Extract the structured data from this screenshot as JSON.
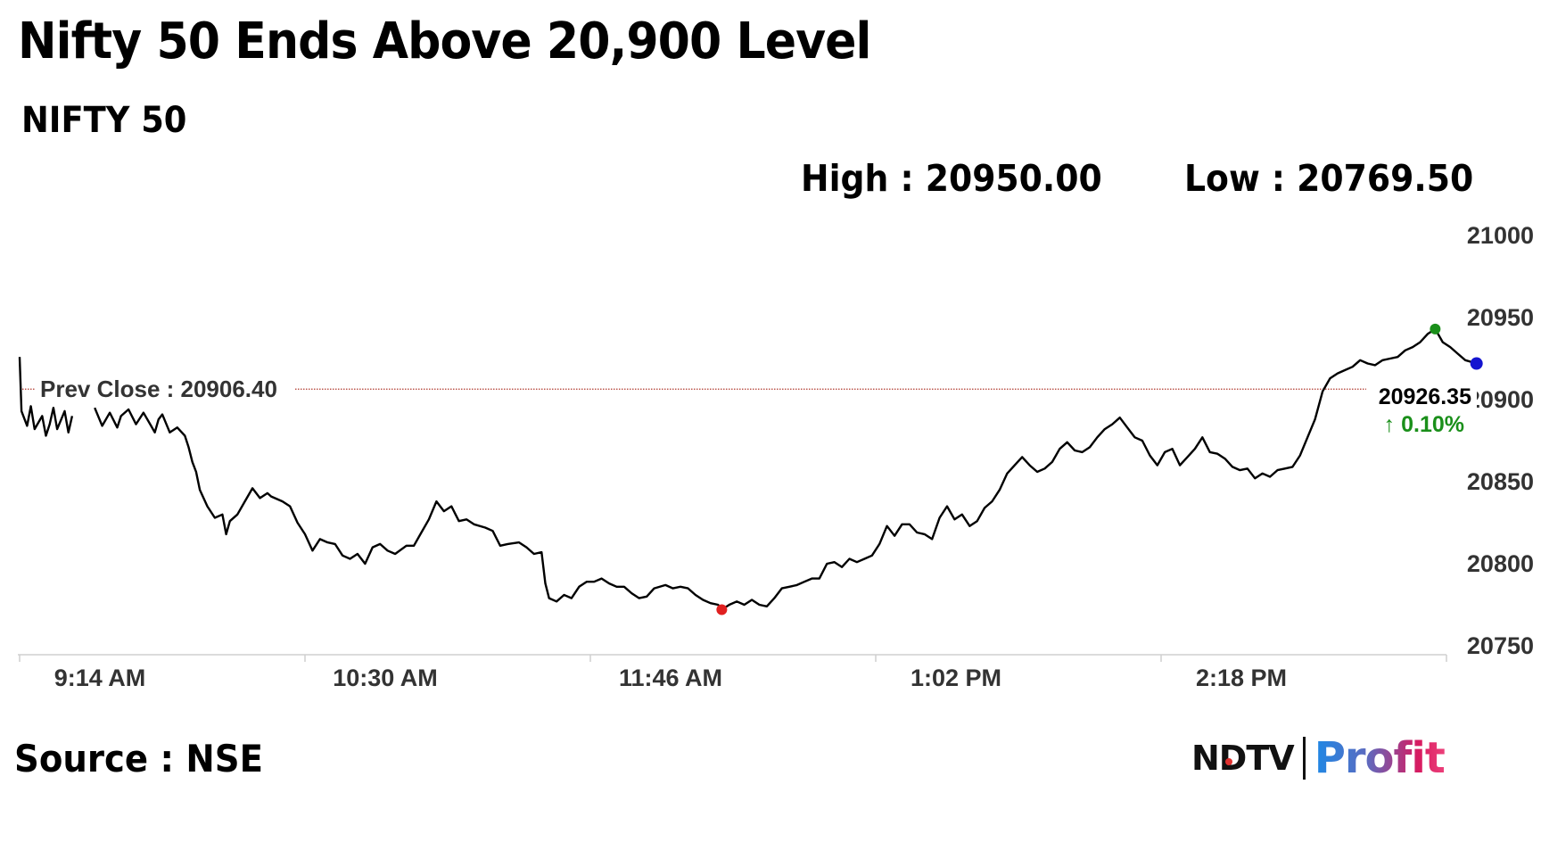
{
  "header": {
    "title": "Nifty 50 Ends Above 20,900 Level",
    "subtitle": "NIFTY 50",
    "high_label": "High : 20950.00",
    "low_label": "Low : 20769.50"
  },
  "footer": {
    "source": "Source : NSE",
    "logo_ndtv": "NDTV",
    "logo_profit": "Profit"
  },
  "chart_data": {
    "type": "line",
    "title": "NIFTY 50",
    "xlabel": "",
    "ylabel": "",
    "ylim": [
      20750,
      21000
    ],
    "y_ticks": [
      21000,
      20950,
      20900,
      20850,
      20800,
      20750
    ],
    "x_tick_labels": [
      "9:14 AM",
      "10:30 AM",
      "11:46 AM",
      "1:02 PM",
      "2:18 PM"
    ],
    "x_range_minutes": [
      0,
      380
    ],
    "x_tick_minutes": [
      0,
      76,
      152,
      228,
      304
    ],
    "prev_close": 20906.4,
    "prev_close_label": "Prev Close : 20906.40",
    "last_price": "20926.35",
    "change_label": "0.10%",
    "change_direction": "up",
    "grid": false,
    "colors": {
      "line": "#000000",
      "prev_close_line": "#b03a2e",
      "high_marker": "#1a8f1a",
      "low_marker": "#e02020",
      "last_marker": "#1414d0",
      "change": "#1a8f1a"
    },
    "markers": {
      "high": {
        "minute": 377,
        "value": 20943
      },
      "low": {
        "minute": 187,
        "value": 20772
      },
      "last": {
        "minute": 388,
        "value": 20922
      }
    },
    "series": [
      {
        "points": [
          [
            0,
            20926
          ],
          [
            0.5,
            20893
          ],
          [
            2,
            20884
          ],
          [
            3,
            20896
          ],
          [
            4,
            20882
          ],
          [
            6,
            20890
          ],
          [
            7,
            20878
          ],
          [
            8,
            20885
          ],
          [
            9,
            20895
          ],
          [
            10,
            20882
          ],
          [
            12,
            20893
          ],
          [
            13,
            20880
          ],
          [
            14,
            20890
          ],
          [
            20,
            20895
          ],
          [
            22,
            20884
          ],
          [
            24,
            20892
          ],
          [
            26,
            20883
          ],
          [
            27,
            20890
          ],
          [
            29,
            20894
          ],
          [
            31,
            20885
          ],
          [
            33,
            20892
          ],
          [
            35,
            20884
          ],
          [
            36,
            20880
          ],
          [
            37,
            20888
          ],
          [
            38,
            20891
          ],
          [
            40,
            20880
          ],
          [
            42,
            20883
          ],
          [
            44,
            20878
          ],
          [
            45,
            20871
          ],
          [
            46,
            20862
          ],
          [
            47,
            20856
          ],
          [
            48,
            20845
          ],
          [
            50,
            20835
          ],
          [
            52,
            20828
          ],
          [
            54,
            20830
          ],
          [
            55,
            20818
          ],
          [
            56,
            20826
          ],
          [
            58,
            20830
          ],
          [
            60,
            20838
          ],
          [
            62,
            20846
          ],
          [
            64,
            20840
          ],
          [
            66,
            20843
          ],
          [
            67,
            20841
          ],
          [
            70,
            20838
          ],
          [
            72,
            20835
          ],
          [
            74,
            20825
          ],
          [
            76,
            20818
          ],
          [
            78,
            20808
          ],
          [
            80,
            20815
          ],
          [
            82,
            20813
          ],
          [
            84,
            20812
          ],
          [
            86,
            20805
          ],
          [
            88,
            20803
          ],
          [
            90,
            20806
          ],
          [
            92,
            20800
          ],
          [
            94,
            20810
          ],
          [
            96,
            20812
          ],
          [
            98,
            20808
          ],
          [
            100,
            20806
          ],
          [
            103,
            20811
          ],
          [
            105,
            20811
          ],
          [
            107,
            20819
          ],
          [
            109,
            20827
          ],
          [
            111,
            20838
          ],
          [
            113,
            20832
          ],
          [
            115,
            20835
          ],
          [
            117,
            20826
          ],
          [
            119,
            20827
          ],
          [
            121,
            20824
          ],
          [
            124,
            20822
          ],
          [
            126,
            20820
          ],
          [
            128,
            20811
          ],
          [
            130,
            20812
          ],
          [
            133,
            20813
          ],
          [
            135,
            20810
          ],
          [
            137,
            20806
          ],
          [
            139,
            20807
          ],
          [
            140,
            20788
          ],
          [
            141,
            20779
          ],
          [
            143,
            20777
          ],
          [
            145,
            20781
          ],
          [
            147,
            20779
          ],
          [
            149,
            20786
          ],
          [
            151,
            20789
          ],
          [
            153,
            20789
          ],
          [
            155,
            20791
          ],
          [
            157,
            20788
          ],
          [
            159,
            20786
          ],
          [
            161,
            20786
          ],
          [
            163,
            20782
          ],
          [
            165,
            20779
          ],
          [
            167,
            20780
          ],
          [
            169,
            20785
          ],
          [
            172,
            20787
          ],
          [
            174,
            20785
          ],
          [
            176,
            20786
          ],
          [
            178,
            20785
          ],
          [
            180,
            20781
          ],
          [
            182,
            20778
          ],
          [
            184,
            20776
          ],
          [
            186,
            20775
          ],
          [
            187,
            20772
          ],
          [
            189,
            20775
          ],
          [
            191,
            20777
          ],
          [
            193,
            20775
          ],
          [
            195,
            20778
          ],
          [
            197,
            20775
          ],
          [
            199,
            20774
          ],
          [
            201,
            20779
          ],
          [
            203,
            20785
          ],
          [
            205,
            20786
          ],
          [
            207,
            20787
          ],
          [
            209,
            20789
          ],
          [
            211,
            20791
          ],
          [
            213,
            20791
          ],
          [
            215,
            20800
          ],
          [
            217,
            20801
          ],
          [
            219,
            20798
          ],
          [
            221,
            20803
          ],
          [
            223,
            20801
          ],
          [
            225,
            20803
          ],
          [
            227,
            20805
          ],
          [
            229,
            20812
          ],
          [
            231,
            20823
          ],
          [
            233,
            20817
          ],
          [
            235,
            20824
          ],
          [
            237,
            20824
          ],
          [
            239,
            20819
          ],
          [
            241,
            20818
          ],
          [
            243,
            20815
          ],
          [
            245,
            20828
          ],
          [
            247,
            20835
          ],
          [
            249,
            20827
          ],
          [
            251,
            20830
          ],
          [
            253,
            20823
          ],
          [
            255,
            20826
          ],
          [
            257,
            20834
          ],
          [
            259,
            20838
          ],
          [
            261,
            20845
          ],
          [
            263,
            20855
          ],
          [
            265,
            20860
          ],
          [
            267,
            20865
          ],
          [
            269,
            20860
          ],
          [
            271,
            20856
          ],
          [
            273,
            20858
          ],
          [
            275,
            20862
          ],
          [
            277,
            20870
          ],
          [
            279,
            20874
          ],
          [
            281,
            20869
          ],
          [
            283,
            20868
          ],
          [
            285,
            20871
          ],
          [
            287,
            20877
          ],
          [
            289,
            20882
          ],
          [
            291,
            20885
          ],
          [
            293,
            20889
          ],
          [
            295,
            20883
          ],
          [
            297,
            20877
          ],
          [
            299,
            20875
          ],
          [
            301,
            20866
          ],
          [
            303,
            20860
          ],
          [
            305,
            20868
          ],
          [
            307,
            20870
          ],
          [
            309,
            20860
          ],
          [
            311,
            20865
          ],
          [
            313,
            20870
          ],
          [
            315,
            20877
          ],
          [
            317,
            20868
          ],
          [
            319,
            20867
          ],
          [
            321,
            20864
          ],
          [
            323,
            20859
          ],
          [
            325,
            20857
          ],
          [
            327,
            20858
          ],
          [
            329,
            20852
          ],
          [
            331,
            20855
          ],
          [
            333,
            20853
          ],
          [
            335,
            20857
          ],
          [
            337,
            20858
          ],
          [
            339,
            20859
          ],
          [
            341,
            20866
          ],
          [
            343,
            20877
          ],
          [
            345,
            20888
          ],
          [
            347,
            20905
          ],
          [
            349,
            20913
          ],
          [
            351,
            20916
          ],
          [
            353,
            20918
          ],
          [
            355,
            20920
          ],
          [
            357,
            20924
          ],
          [
            359,
            20922
          ],
          [
            361,
            20921
          ],
          [
            363,
            20924
          ],
          [
            365,
            20925
          ],
          [
            367,
            20926
          ],
          [
            369,
            20930
          ],
          [
            371,
            20932
          ],
          [
            373,
            20935
          ],
          [
            375,
            20940
          ],
          [
            377,
            20943
          ],
          [
            379,
            20935
          ],
          [
            381,
            20932
          ],
          [
            383,
            20928
          ],
          [
            385,
            20924
          ],
          [
            388,
            20922
          ]
        ]
      }
    ]
  }
}
